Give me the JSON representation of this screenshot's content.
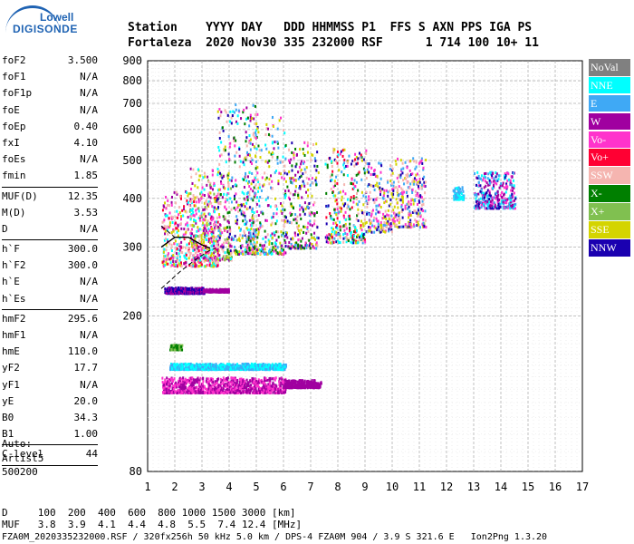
{
  "logo": {
    "line1": "Lowell",
    "line2": "DIGISONDE"
  },
  "header": {
    "line1": "Station    YYYY DAY   DDD HHMMSS P1  FFS S AXN PPS IGA PS",
    "line2": "Fortaleza  2020 Nov30 335 232000 RSF      1 714 100 10+ 11"
  },
  "params": [
    {
      "name": "foF2",
      "value": "3.500"
    },
    {
      "name": "foF1",
      "value": "N/A"
    },
    {
      "name": "foF1p",
      "value": "N/A"
    },
    {
      "name": "foE",
      "value": "N/A"
    },
    {
      "name": "foEp",
      "value": "0.40"
    },
    {
      "name": "fxI",
      "value": "4.10"
    },
    {
      "name": "foEs",
      "value": "N/A"
    },
    {
      "name": "fmin",
      "value": "1.85"
    },
    {
      "sep": true
    },
    {
      "name": "MUF(D)",
      "value": "12.35"
    },
    {
      "name": "M(D)",
      "value": "3.53"
    },
    {
      "name": "D",
      "value": "N/A"
    },
    {
      "sep": true
    },
    {
      "name": "h`F",
      "value": "300.0"
    },
    {
      "name": "h`F2",
      "value": "300.0"
    },
    {
      "name": "h`E",
      "value": "N/A"
    },
    {
      "name": "h`Es",
      "value": "N/A"
    },
    {
      "sep": true
    },
    {
      "name": "hmF2",
      "value": "295.6"
    },
    {
      "name": "hmF1",
      "value": "N/A"
    },
    {
      "name": "hmE",
      "value": "110.0"
    },
    {
      "name": "yF2",
      "value": "17.7"
    },
    {
      "name": "yF1",
      "value": "N/A"
    },
    {
      "name": "yE",
      "value": "20.0"
    },
    {
      "name": "B0",
      "value": "34.3"
    },
    {
      "name": "B1",
      "value": "1.00"
    },
    {
      "sep": true
    },
    {
      "name": "C-level",
      "value": "44"
    },
    {
      "sep": true
    }
  ],
  "auto": {
    "line1": "Auto:",
    "line2": "Artist5",
    "line3": "500200"
  },
  "legend": [
    {
      "label": "NoVal",
      "color": "#808080"
    },
    {
      "label": "NNE",
      "color": "#00ffff"
    },
    {
      "label": "E",
      "color": "#3fa9f5"
    },
    {
      "label": "W",
      "color": "#a000a0"
    },
    {
      "label": "Vo-",
      "color": "#ff33cc"
    },
    {
      "label": "Vo+",
      "color": "#ff0033"
    },
    {
      "label": "SSW",
      "color": "#f5b5b0"
    },
    {
      "label": "X-",
      "color": "#007f00"
    },
    {
      "label": "X+",
      "color": "#80c050"
    },
    {
      "label": "SSE",
      "color": "#d4d400"
    },
    {
      "label": "NNW",
      "color": "#1a00b0"
    }
  ],
  "footer": {
    "line1": "D     100  200  400  600  800 1000 1500 3000 [km]",
    "line2": "MUF   3.8  3.9  4.1  4.4  4.8  5.5  7.4 12.4 [MHz]"
  },
  "filename": "FZA0M_2020335232000.RSF / 320fx256h 50 kHz 5.0 km / DPS-4 FZA0M 904 / 3.9 S 321.6 E   Ion2Png 1.3.20",
  "chart_data": {
    "type": "scatter",
    "title": "",
    "xlabel": "",
    "ylabel": "",
    "xlim": [
      1,
      17
    ],
    "ylim": [
      80,
      900
    ],
    "xticks": [
      1,
      2,
      3,
      4,
      5,
      6,
      7,
      8,
      9,
      10,
      11,
      12,
      13,
      14,
      15,
      16,
      17
    ],
    "yticks": [
      80,
      200,
      300,
      400,
      500,
      600,
      700,
      800,
      900
    ],
    "grid": true,
    "clusters": [
      {
        "xmin": 1.5,
        "xmax": 3.5,
        "ymin": 270,
        "ymax": 420,
        "colors": [
          "Vo+",
          "Vo-",
          "SSW",
          "SSE",
          "W",
          "NNE"
        ]
      },
      {
        "xmin": 2.5,
        "xmax": 4.0,
        "ymin": 280,
        "ymax": 480,
        "colors": [
          "Vo-",
          "W",
          "SSE",
          "NNE",
          "SSW",
          "X+"
        ]
      },
      {
        "xmin": 3.5,
        "xmax": 5.0,
        "ymin": 290,
        "ymax": 700,
        "colors": [
          "NNE",
          "E",
          "Vo-",
          "SSE",
          "W",
          "X-",
          "SSW",
          "NNW"
        ]
      },
      {
        "xmin": 4.5,
        "xmax": 6.0,
        "ymin": 290,
        "ymax": 650,
        "colors": [
          "E",
          "NNE",
          "SSE",
          "Vo-",
          "W",
          "SSW",
          "X-"
        ]
      },
      {
        "xmin": 6.0,
        "xmax": 7.2,
        "ymin": 300,
        "ymax": 560,
        "colors": [
          "SSE",
          "Vo-",
          "W",
          "NNW",
          "SSW",
          "E",
          "X-"
        ]
      },
      {
        "xmin": 7.5,
        "xmax": 9.0,
        "ymin": 310,
        "ymax": 540,
        "colors": [
          "SSE",
          "E",
          "NNE",
          "Vo+",
          "Vo-",
          "NNW",
          "SSW",
          "X-"
        ]
      },
      {
        "xmin": 9.0,
        "xmax": 10.0,
        "ymin": 330,
        "ymax": 500,
        "colors": [
          "SSE",
          "Vo-",
          "NNW",
          "E",
          "SSW"
        ]
      },
      {
        "xmin": 10.0,
        "xmax": 11.2,
        "ymin": 340,
        "ymax": 510,
        "colors": [
          "SSE",
          "SSW",
          "Vo-",
          "NNW",
          "E"
        ]
      },
      {
        "xmin": 12.2,
        "xmax": 12.6,
        "ymin": 400,
        "ymax": 430,
        "colors": [
          "NNE",
          "E"
        ]
      },
      {
        "xmin": 13.0,
        "xmax": 14.5,
        "ymin": 380,
        "ymax": 470,
        "colors": [
          "W",
          "Vo-",
          "E",
          "NNE",
          "NNW"
        ]
      },
      {
        "xmin": 1.6,
        "xmax": 3.0,
        "ymin": 230,
        "ymax": 238,
        "colors": [
          "W",
          "NNW"
        ]
      },
      {
        "xmin": 3.0,
        "xmax": 3.9,
        "ymin": 232,
        "ymax": 236,
        "colors": [
          "W"
        ]
      },
      {
        "xmin": 1.8,
        "xmax": 6.0,
        "ymin": 147,
        "ymax": 152,
        "colors": [
          "E",
          "NNE"
        ]
      },
      {
        "xmin": 1.8,
        "xmax": 2.2,
        "ymin": 165,
        "ymax": 170,
        "colors": [
          "X-",
          "X+"
        ]
      },
      {
        "xmin": 1.5,
        "xmax": 6.0,
        "ymin": 128,
        "ymax": 140,
        "colors": [
          "W",
          "Vo-"
        ]
      },
      {
        "xmin": 6.0,
        "xmax": 7.3,
        "ymin": 132,
        "ymax": 138,
        "colors": [
          "W"
        ]
      }
    ],
    "profile_curve": [
      [
        1.5,
        300
      ],
      [
        2.0,
        318
      ],
      [
        2.5,
        318
      ],
      [
        3.0,
        304
      ],
      [
        3.3,
        298
      ]
    ],
    "dashed_curve": [
      [
        1.5,
        235
      ],
      [
        2.2,
        260
      ],
      [
        2.8,
        280
      ],
      [
        3.3,
        295
      ],
      [
        3.5,
        298
      ]
    ],
    "upper_dashed": [
      [
        1.5,
        340
      ],
      [
        2.0,
        318
      ]
    ]
  }
}
